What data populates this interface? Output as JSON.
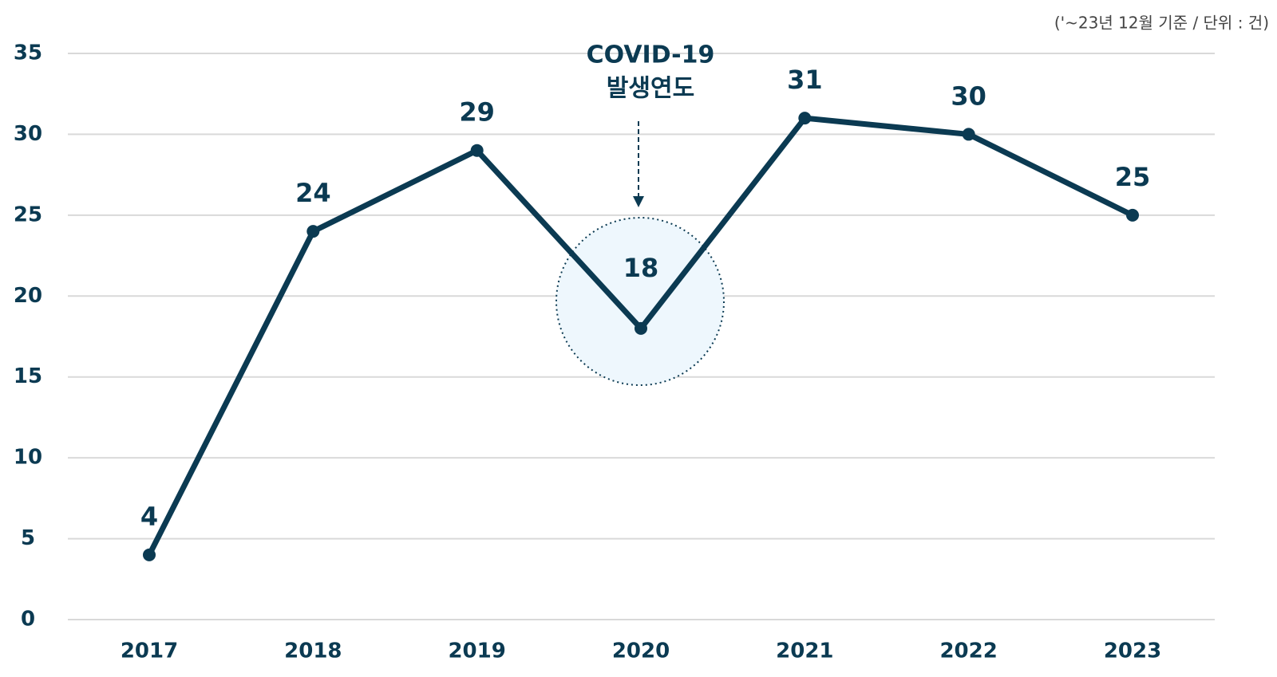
{
  "chart_data": {
    "type": "line",
    "note": "('~23년 12월 기준 / 단위 : 건)",
    "annotation": [
      "COVID-19",
      "발생연도"
    ],
    "categories": [
      "2017",
      "2018",
      "2019",
      "2020",
      "2021",
      "2022",
      "2023"
    ],
    "values": [
      4,
      24,
      29,
      18,
      31,
      30,
      25
    ],
    "color": "#0b3a52",
    "ylim": [
      0,
      35
    ],
    "yticks": [
      0,
      5,
      10,
      15,
      20,
      25,
      30,
      35
    ],
    "grid": true
  }
}
